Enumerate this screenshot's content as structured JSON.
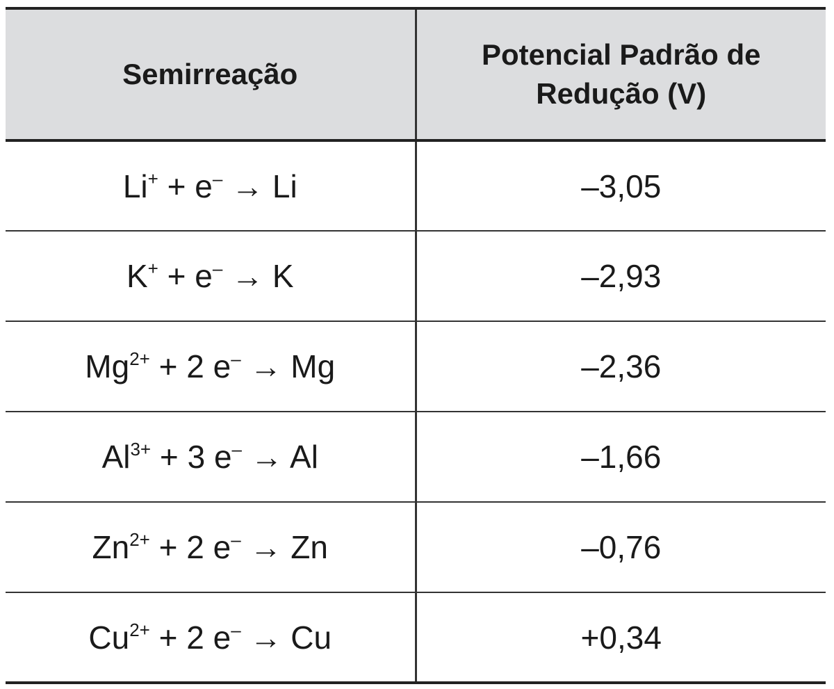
{
  "table": {
    "headers": {
      "reaction": "Semirreação",
      "potential_line1": "Potencial Padrão de",
      "potential_line2": "Redução (V)"
    },
    "rows": [
      {
        "ion": "Li",
        "charge": "+",
        "coef": "",
        "product": "Li",
        "potential": "–3,05"
      },
      {
        "ion": "K",
        "charge": "+",
        "coef": "",
        "product": "K",
        "potential": "–2,93"
      },
      {
        "ion": "Mg",
        "charge": "2+",
        "coef": "2 ",
        "product": "Mg",
        "potential": "–2,36"
      },
      {
        "ion": "Al",
        "charge": "3+",
        "coef": "3 ",
        "product": "Al",
        "potential": "–1,66"
      },
      {
        "ion": "Zn",
        "charge": "2+",
        "coef": "2 ",
        "product": "Zn",
        "potential": "–0,76"
      },
      {
        "ion": "Cu",
        "charge": "2+",
        "coef": "2 ",
        "product": "Cu",
        "potential": "+0,34"
      }
    ],
    "symbols": {
      "plus": " + ",
      "electron": "e",
      "electron_charge": "–",
      "arrow": " → "
    }
  }
}
